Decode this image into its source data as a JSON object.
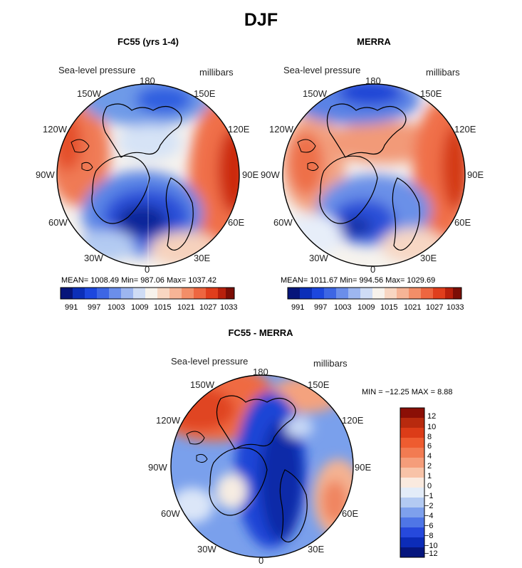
{
  "page_title": "DJF",
  "colors": {
    "deep_blue": "#0a1f8f",
    "blue": "#1f45d9",
    "light_blue": "#a9c6f2",
    "pale": "#f3f0ea",
    "peach": "#f7c3a4",
    "orange": "#f0603a",
    "dark_red": "#8b1208"
  },
  "panels": [
    {
      "title": "FC55 (yrs 1-4)",
      "field": "Sea-level pressure",
      "units": "millibars",
      "lon_labels": [
        "180",
        "150E",
        "120E",
        "90E",
        "60E",
        "30E",
        "0",
        "30W",
        "60W",
        "90W",
        "120W",
        "150W"
      ],
      "stats": "MEAN= 1008.49   Min= 987.06   Max= 1037.42",
      "colorbar_labels": [
        "991",
        "997",
        "1003",
        "1009",
        "1015",
        "1021",
        "1027",
        "1033"
      ]
    },
    {
      "title": "MERRA",
      "field": "Sea-level pressure",
      "units": "millibars",
      "lon_labels": [
        "180",
        "150E",
        "120E",
        "90E",
        "60E",
        "30E",
        "0",
        "30W",
        "60W",
        "90W",
        "120W",
        "150W"
      ],
      "stats": "MEAN= 1011.67   Min= 994.56   Max= 1029.69",
      "colorbar_labels": [
        "991",
        "997",
        "1003",
        "1009",
        "1015",
        "1021",
        "1027",
        "1033"
      ]
    },
    {
      "title": "FC55 - MERRA",
      "field": "Sea-level pressure",
      "units": "millibars",
      "lon_labels": [
        "180",
        "150E",
        "120E",
        "90E",
        "60E",
        "30E",
        "0",
        "30W",
        "60W",
        "90W",
        "120W",
        "150W"
      ],
      "stats": "MIN = −12.25  MAX =    8.88",
      "colorbar_labels": [
        "12",
        "10",
        "8",
        "6",
        "4",
        "2",
        "1",
        "0",
        "−1",
        "−2",
        "−4",
        "−6",
        "−8",
        "−10",
        "−12"
      ]
    }
  ]
}
